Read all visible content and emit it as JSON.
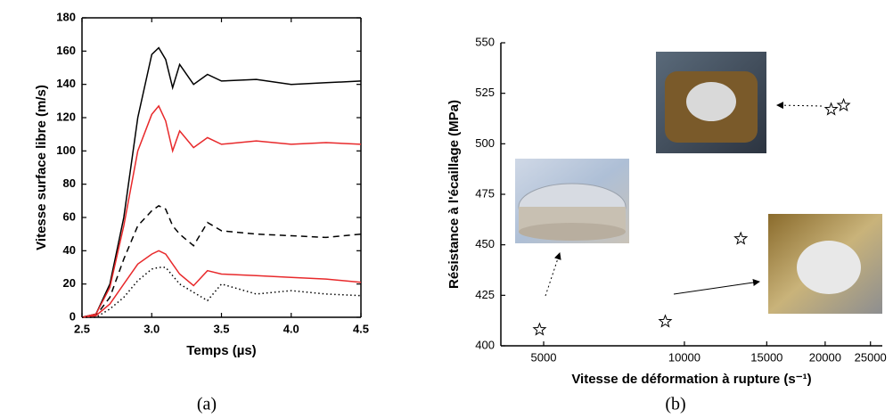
{
  "chart_data": [
    {
      "type": "line",
      "x_label": "Temps (µs)",
      "y_label": "Vitesse surface libre (m/s)",
      "caption": "(a)",
      "x": [
        2.5,
        2.6,
        2.7,
        2.8,
        2.9,
        3.0,
        3.05,
        3.1,
        3.15,
        3.2,
        3.3,
        3.4,
        3.5,
        3.75,
        4.0,
        4.25,
        4.5
      ],
      "series": [
        {
          "color": "#000000",
          "dash": "solid",
          "values": [
            0,
            2,
            20,
            60,
            120,
            158,
            162,
            155,
            138,
            152,
            140,
            146,
            142,
            143,
            140,
            141,
            142
          ]
        },
        {
          "color": "#e8292b",
          "dash": "solid",
          "values": [
            0,
            2,
            18,
            55,
            100,
            122,
            127,
            118,
            100,
            112,
            102,
            108,
            104,
            106,
            104,
            105,
            104
          ]
        },
        {
          "color": "#000000",
          "dash": "dash",
          "values": [
            0,
            1,
            12,
            35,
            55,
            64,
            67,
            65,
            55,
            50,
            43,
            57,
            52,
            50,
            49,
            48,
            50
          ]
        },
        {
          "color": "#e8292b",
          "dash": "solid",
          "values": [
            0,
            1,
            8,
            20,
            32,
            38,
            40,
            38,
            32,
            26,
            19,
            28,
            26,
            25,
            24,
            23,
            21
          ]
        },
        {
          "color": "#000000",
          "dash": "dot",
          "values": [
            0,
            0,
            5,
            12,
            22,
            29,
            30,
            30,
            25,
            20,
            15,
            10,
            20,
            14,
            16,
            14,
            13
          ]
        }
      ],
      "xlim": [
        2.5,
        4.5
      ],
      "xticks": [
        2.5,
        {
          "value": 3,
          "label": "3.0"
        },
        3.5,
        {
          "value": 4,
          "label": "4.0"
        },
        4.5
      ],
      "ylim": [
        0,
        180
      ],
      "yticks": [
        0,
        20,
        40,
        60,
        80,
        100,
        120,
        140,
        160,
        180
      ],
      "box": true
    },
    {
      "type": "scatter",
      "x_label": "Vitesse de déformation à rupture (s⁻¹)",
      "y_label": "Résistance à l'écaillage (MPa)",
      "caption": "(b)",
      "x": [
        4900,
        9100,
        13200,
        20600,
        21900
      ],
      "values": [
        408,
        412,
        453,
        517,
        519
      ],
      "color": "#000000",
      "marker": "star",
      "xscale": "log",
      "xlim": [
        4050,
        26500
      ],
      "xticks": [
        5000,
        10000,
        15000,
        20000,
        25000
      ],
      "ylim": [
        400,
        550
      ],
      "yticks": [
        400,
        425,
        450,
        475,
        500,
        525,
        550
      ],
      "box": false
    }
  ]
}
